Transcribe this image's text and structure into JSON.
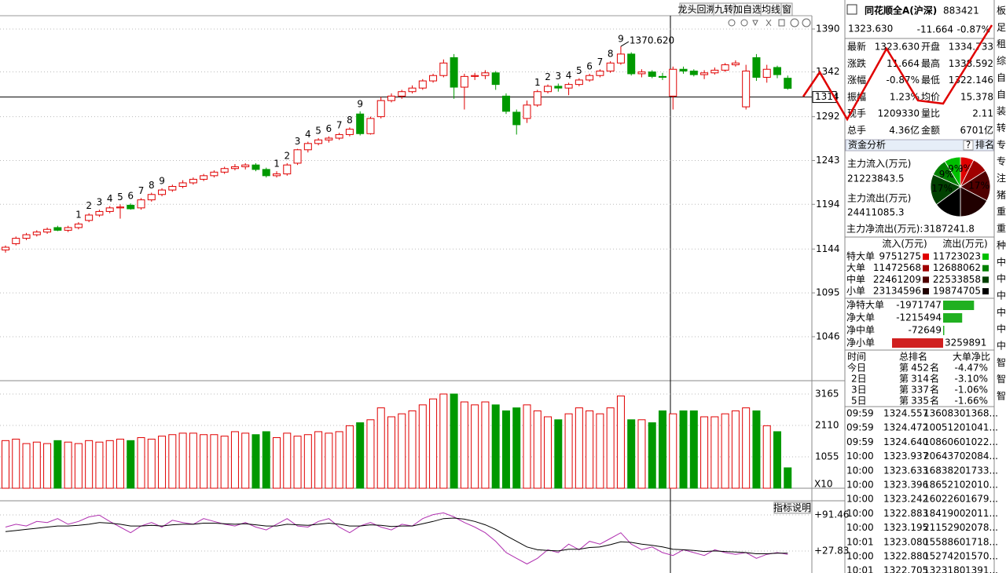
{
  "toolbar": [
    "龙头回溯",
    "九转",
    "加自选",
    "均线",
    "窗"
  ],
  "price_chart": {
    "type": "candlestick",
    "ylim": [
      996.8,
      1404.9
    ],
    "yticks": [
      1390,
      1342,
      1292,
      1243,
      1194,
      1144,
      1095,
      1046
    ],
    "cursor": 1314,
    "max_label": "1370.620",
    "candles": [
      [
        1143,
        1148,
        1140,
        1146
      ],
      [
        1150,
        1158,
        1148,
        1156
      ],
      [
        1156,
        1162,
        1154,
        1160
      ],
      [
        1160,
        1165,
        1158,
        1163
      ],
      [
        1163,
        1168,
        1161,
        1166
      ],
      [
        1168,
        1170,
        1164,
        1165
      ],
      [
        1165,
        1170,
        1163,
        1168
      ],
      [
        1168,
        1174,
        1166,
        1172
      ],
      [
        1176,
        1184,
        1174,
        1182
      ],
      [
        1182,
        1188,
        1180,
        1186
      ],
      [
        1186,
        1192,
        1184,
        1190
      ],
      [
        1190,
        1194,
        1178,
        1191
      ],
      [
        1193,
        1195,
        1188,
        1189
      ],
      [
        1190,
        1201,
        1188,
        1199
      ],
      [
        1199,
        1207,
        1197,
        1205
      ],
      [
        1205,
        1212,
        1203,
        1210
      ],
      [
        1210,
        1216,
        1208,
        1214
      ],
      [
        1214,
        1221,
        1212,
        1218
      ],
      [
        1218,
        1224,
        1216,
        1222
      ],
      [
        1222,
        1228,
        1220,
        1226
      ],
      [
        1226,
        1232,
        1224,
        1230
      ],
      [
        1230,
        1236,
        1228,
        1234
      ],
      [
        1234,
        1239,
        1232,
        1236
      ],
      [
        1236,
        1240,
        1233,
        1238
      ],
      [
        1238,
        1240,
        1231,
        1233
      ],
      [
        1233,
        1235,
        1224,
        1226
      ],
      [
        1226,
        1231,
        1224,
        1228
      ],
      [
        1228,
        1240,
        1226,
        1238
      ],
      [
        1240,
        1256,
        1238,
        1255
      ],
      [
        1255,
        1264,
        1252,
        1262
      ],
      [
        1262,
        1268,
        1260,
        1266
      ],
      [
        1266,
        1270,
        1263,
        1268
      ],
      [
        1268,
        1274,
        1266,
        1272
      ],
      [
        1272,
        1280,
        1270,
        1278
      ],
      [
        1295,
        1298,
        1271,
        1273
      ],
      [
        1273,
        1292,
        1272,
        1290
      ],
      [
        1292,
        1314,
        1290,
        1310
      ],
      [
        1310,
        1318,
        1308,
        1315
      ],
      [
        1315,
        1322,
        1312,
        1320
      ],
      [
        1320,
        1327,
        1318,
        1324
      ],
      [
        1324,
        1334,
        1322,
        1332
      ],
      [
        1332,
        1340,
        1330,
        1338
      ],
      [
        1338,
        1356,
        1336,
        1352
      ],
      [
        1358,
        1362,
        1312,
        1325
      ],
      [
        1325,
        1340,
        1300,
        1337
      ],
      [
        1337,
        1341,
        1333,
        1338
      ],
      [
        1338,
        1344,
        1334,
        1341
      ],
      [
        1341,
        1343,
        1322,
        1328
      ],
      [
        1315,
        1318,
        1295,
        1298
      ],
      [
        1297,
        1300,
        1272,
        1283
      ],
      [
        1290,
        1310,
        1285,
        1305
      ],
      [
        1305,
        1322,
        1303,
        1320
      ],
      [
        1320,
        1328,
        1318,
        1326
      ],
      [
        1326,
        1329,
        1320,
        1324
      ],
      [
        1324,
        1330,
        1316,
        1328
      ],
      [
        1328,
        1335,
        1326,
        1333
      ],
      [
        1333,
        1340,
        1331,
        1338
      ],
      [
        1338,
        1345,
        1336,
        1343
      ],
      [
        1343,
        1354,
        1341,
        1352
      ],
      [
        1352,
        1370.62,
        1350,
        1362
      ],
      [
        1362,
        1364,
        1338,
        1340
      ],
      [
        1340,
        1345,
        1336,
        1342
      ],
      [
        1342,
        1344,
        1335,
        1337
      ],
      [
        1337,
        1341,
        1333,
        1336
      ],
      [
        1315,
        1348,
        1300,
        1345
      ],
      [
        1345,
        1348,
        1340,
        1343
      ],
      [
        1343,
        1345,
        1337,
        1339
      ],
      [
        1339,
        1344,
        1334,
        1341
      ],
      [
        1341,
        1347,
        1339,
        1344
      ],
      [
        1344,
        1352,
        1342,
        1350
      ],
      [
        1350,
        1355,
        1348,
        1352
      ],
      [
        1303,
        1350,
        1300,
        1343
      ],
      [
        1358,
        1362,
        1332,
        1336
      ],
      [
        1336,
        1350,
        1330,
        1345
      ],
      [
        1347,
        1349,
        1335,
        1339
      ],
      [
        1335,
        1338,
        1322.146,
        1323.63
      ]
    ],
    "td_counts": [
      null,
      null,
      null,
      null,
      null,
      null,
      null,
      1,
      2,
      3,
      4,
      5,
      6,
      7,
      8,
      9,
      null,
      null,
      null,
      null,
      null,
      null,
      null,
      null,
      null,
      null,
      1,
      2,
      3,
      4,
      5,
      6,
      7,
      8,
      9,
      null,
      null,
      null,
      null,
      null,
      null,
      null,
      null,
      null,
      null,
      null,
      null,
      null,
      null,
      null,
      null,
      1,
      2,
      3,
      4,
      5,
      6,
      7,
      8,
      9,
      null,
      null,
      null,
      null,
      null,
      null,
      null,
      null,
      null,
      null,
      null,
      null,
      null,
      null,
      null,
      null
    ]
  },
  "volume_chart": {
    "type": "bar",
    "ylim": [
      0,
      3560
    ],
    "yticks": [
      3165,
      2110,
      1055
    ],
    "unit_label": "X10",
    "values": [
      1600,
      1650,
      1500,
      1550,
      1500,
      1600,
      1550,
      1500,
      1600,
      1550,
      1600,
      1650,
      1600,
      1700,
      1650,
      1750,
      1800,
      1850,
      1850,
      1800,
      1800,
      1750,
      1900,
      1850,
      1800,
      1900,
      1700,
      1850,
      1750,
      1800,
      1900,
      1850,
      1900,
      2100,
      2200,
      2300,
      2700,
      2400,
      2500,
      2600,
      2800,
      3000,
      3165,
      3165,
      2900,
      2800,
      2900,
      2800,
      2600,
      2700,
      2800,
      2600,
      2400,
      2300,
      2500,
      2700,
      2600,
      2500,
      2700,
      3100,
      2300,
      2300,
      2200,
      2600,
      2500,
      2600,
      2600,
      2400,
      2400,
      2500,
      2600,
      2700,
      2600,
      2100,
      1900,
      686
    ]
  },
  "indicator_chart": {
    "type": "line",
    "button": "指标说明",
    "ylim": [
      -10.9,
      113.6
    ],
    "yticks": [
      {
        "value": 91.46,
        "label": "+91.46"
      },
      {
        "value": 27.83,
        "label": "+27.83"
      }
    ],
    "series": [
      {
        "color": "#b030b0",
        "values": [
          70,
          75,
          72,
          80,
          78,
          85,
          75,
          80,
          88,
          91,
          80,
          70,
          60,
          72,
          78,
          70,
          82,
          78,
          75,
          85,
          80,
          75,
          72,
          78,
          70,
          65,
          75,
          85,
          72,
          70,
          80,
          85,
          70,
          60,
          72,
          78,
          70,
          65,
          75,
          72,
          85,
          92,
          95,
          88,
          78,
          70,
          60,
          45,
          25,
          15,
          5,
          15,
          30,
          25,
          40,
          30,
          45,
          40,
          50,
          60,
          40,
          30,
          35,
          25,
          20,
          30,
          25,
          20,
          30,
          25,
          22,
          25,
          15,
          22,
          25,
          22
        ]
      },
      {
        "color": "#000000",
        "values": [
          62,
          64,
          66,
          68,
          70,
          72,
          72,
          73,
          75,
          78,
          77,
          75,
          72,
          72,
          73,
          72,
          74,
          75,
          75,
          77,
          77,
          76,
          75,
          76,
          74,
          72,
          72,
          75,
          74,
          73,
          75,
          77,
          75,
          72,
          72,
          74,
          73,
          71,
          72,
          72,
          76,
          80,
          85,
          86,
          84,
          80,
          74,
          66,
          55,
          45,
          35,
          30,
          29,
          28,
          31,
          31,
          34,
          35,
          39,
          44,
          43,
          40,
          38,
          35,
          31,
          30,
          29,
          27,
          28,
          27,
          26,
          25,
          23,
          23,
          24,
          24
        ]
      }
    ]
  },
  "quote": {
    "name": "同花顺全A(沪深)",
    "code": "883421",
    "price": "1323.630",
    "change": "-11.664",
    "change_pct": "-0.87%",
    "rows": [
      [
        "最新",
        "1323.630",
        "开盘",
        "1334.733"
      ],
      [
        "涨跌",
        "11.664",
        "最高",
        "1338.592"
      ],
      [
        "涨幅",
        "-0.87%",
        "最低",
        "1322.146"
      ],
      [
        "振幅",
        "1.23%",
        "均价",
        "15.378"
      ],
      [
        "现手",
        "1209330",
        "量比",
        "2.11"
      ],
      [
        "总手",
        "4.36亿",
        "金额",
        "6701亿"
      ]
    ]
  },
  "fund": {
    "title": "资金分析",
    "help": "?",
    "rank": "排名",
    "inflow_label": "主力流入(万元)",
    "inflow": "21223843.5",
    "outflow_label": "主力流出(万元)",
    "outflow": "24411085.3",
    "net_label": "主力净流出(万元):",
    "net": "3187241.8",
    "pie_labels": [
      "9%",
      null,
      "17%",
      null,
      null,
      "17%",
      "9%",
      "9%"
    ],
    "flow_header": [
      "流入(万元)",
      "流出(万元)"
    ],
    "flow_rows": [
      {
        "label": "特大单",
        "in": 9751275,
        "out": 11723023
      },
      {
        "label": "大单",
        "in": 11472568,
        "out": 12688062
      },
      {
        "label": "中单",
        "in": 22461209,
        "out": 22533858
      },
      {
        "label": "小单",
        "in": 23134596,
        "out": 19874705
      }
    ],
    "net_rows": [
      {
        "label": "净特大单",
        "value": -1971747
      },
      {
        "label": "净大单",
        "value": -1215494
      },
      {
        "label": "净中单",
        "value": -72649
      },
      {
        "label": "净小单",
        "value": 3259891
      }
    ],
    "rank_header": [
      "时间",
      "总排名",
      "大单净比"
    ],
    "rank_rows": [
      [
        "今日",
        "第",
        "452",
        "名",
        "-4.47%"
      ],
      [
        "2日",
        "第",
        "314",
        "名",
        "-3.10%"
      ],
      [
        "3日",
        "第",
        "337",
        "名",
        "-1.06%"
      ],
      [
        "5日",
        "第",
        "335",
        "名",
        "-1.66%"
      ]
    ]
  },
  "ticks": [
    [
      "09:59",
      "1324.557",
      "1360830",
      "1368..."
    ],
    [
      "09:59",
      "1324.472",
      "1005120",
      "1041..."
    ],
    [
      "09:59",
      "1324.640",
      "1086060",
      "1022..."
    ],
    [
      "10:00",
      "1323.937",
      "2064370",
      "2084..."
    ],
    [
      "10:00",
      "1323.633",
      "1683820",
      "1733..."
    ],
    [
      "10:00",
      "1323.396",
      "1865210",
      "2010..."
    ],
    [
      "10:00",
      "1323.242",
      "1602260",
      "1679..."
    ],
    [
      "10:00",
      "1322.883",
      "1841900",
      "2011..."
    ],
    [
      "10:00",
      "1323.195",
      "2115290",
      "2078..."
    ],
    [
      "10:01",
      "1323.080",
      "1558860",
      "1718..."
    ],
    [
      "10:00",
      "1322.880",
      "1527420",
      "1570..."
    ],
    [
      "10:01",
      "1322.705",
      "1323180",
      "1391..."
    ]
  ],
  "sectors": [
    "板",
    "足",
    "租",
    "综",
    "自",
    "自",
    "装",
    "转",
    "专",
    "专",
    "注",
    "猪",
    "重",
    "重",
    "种",
    "中",
    "中",
    "中",
    "中",
    "中",
    "中",
    "智",
    "智",
    "智"
  ]
}
